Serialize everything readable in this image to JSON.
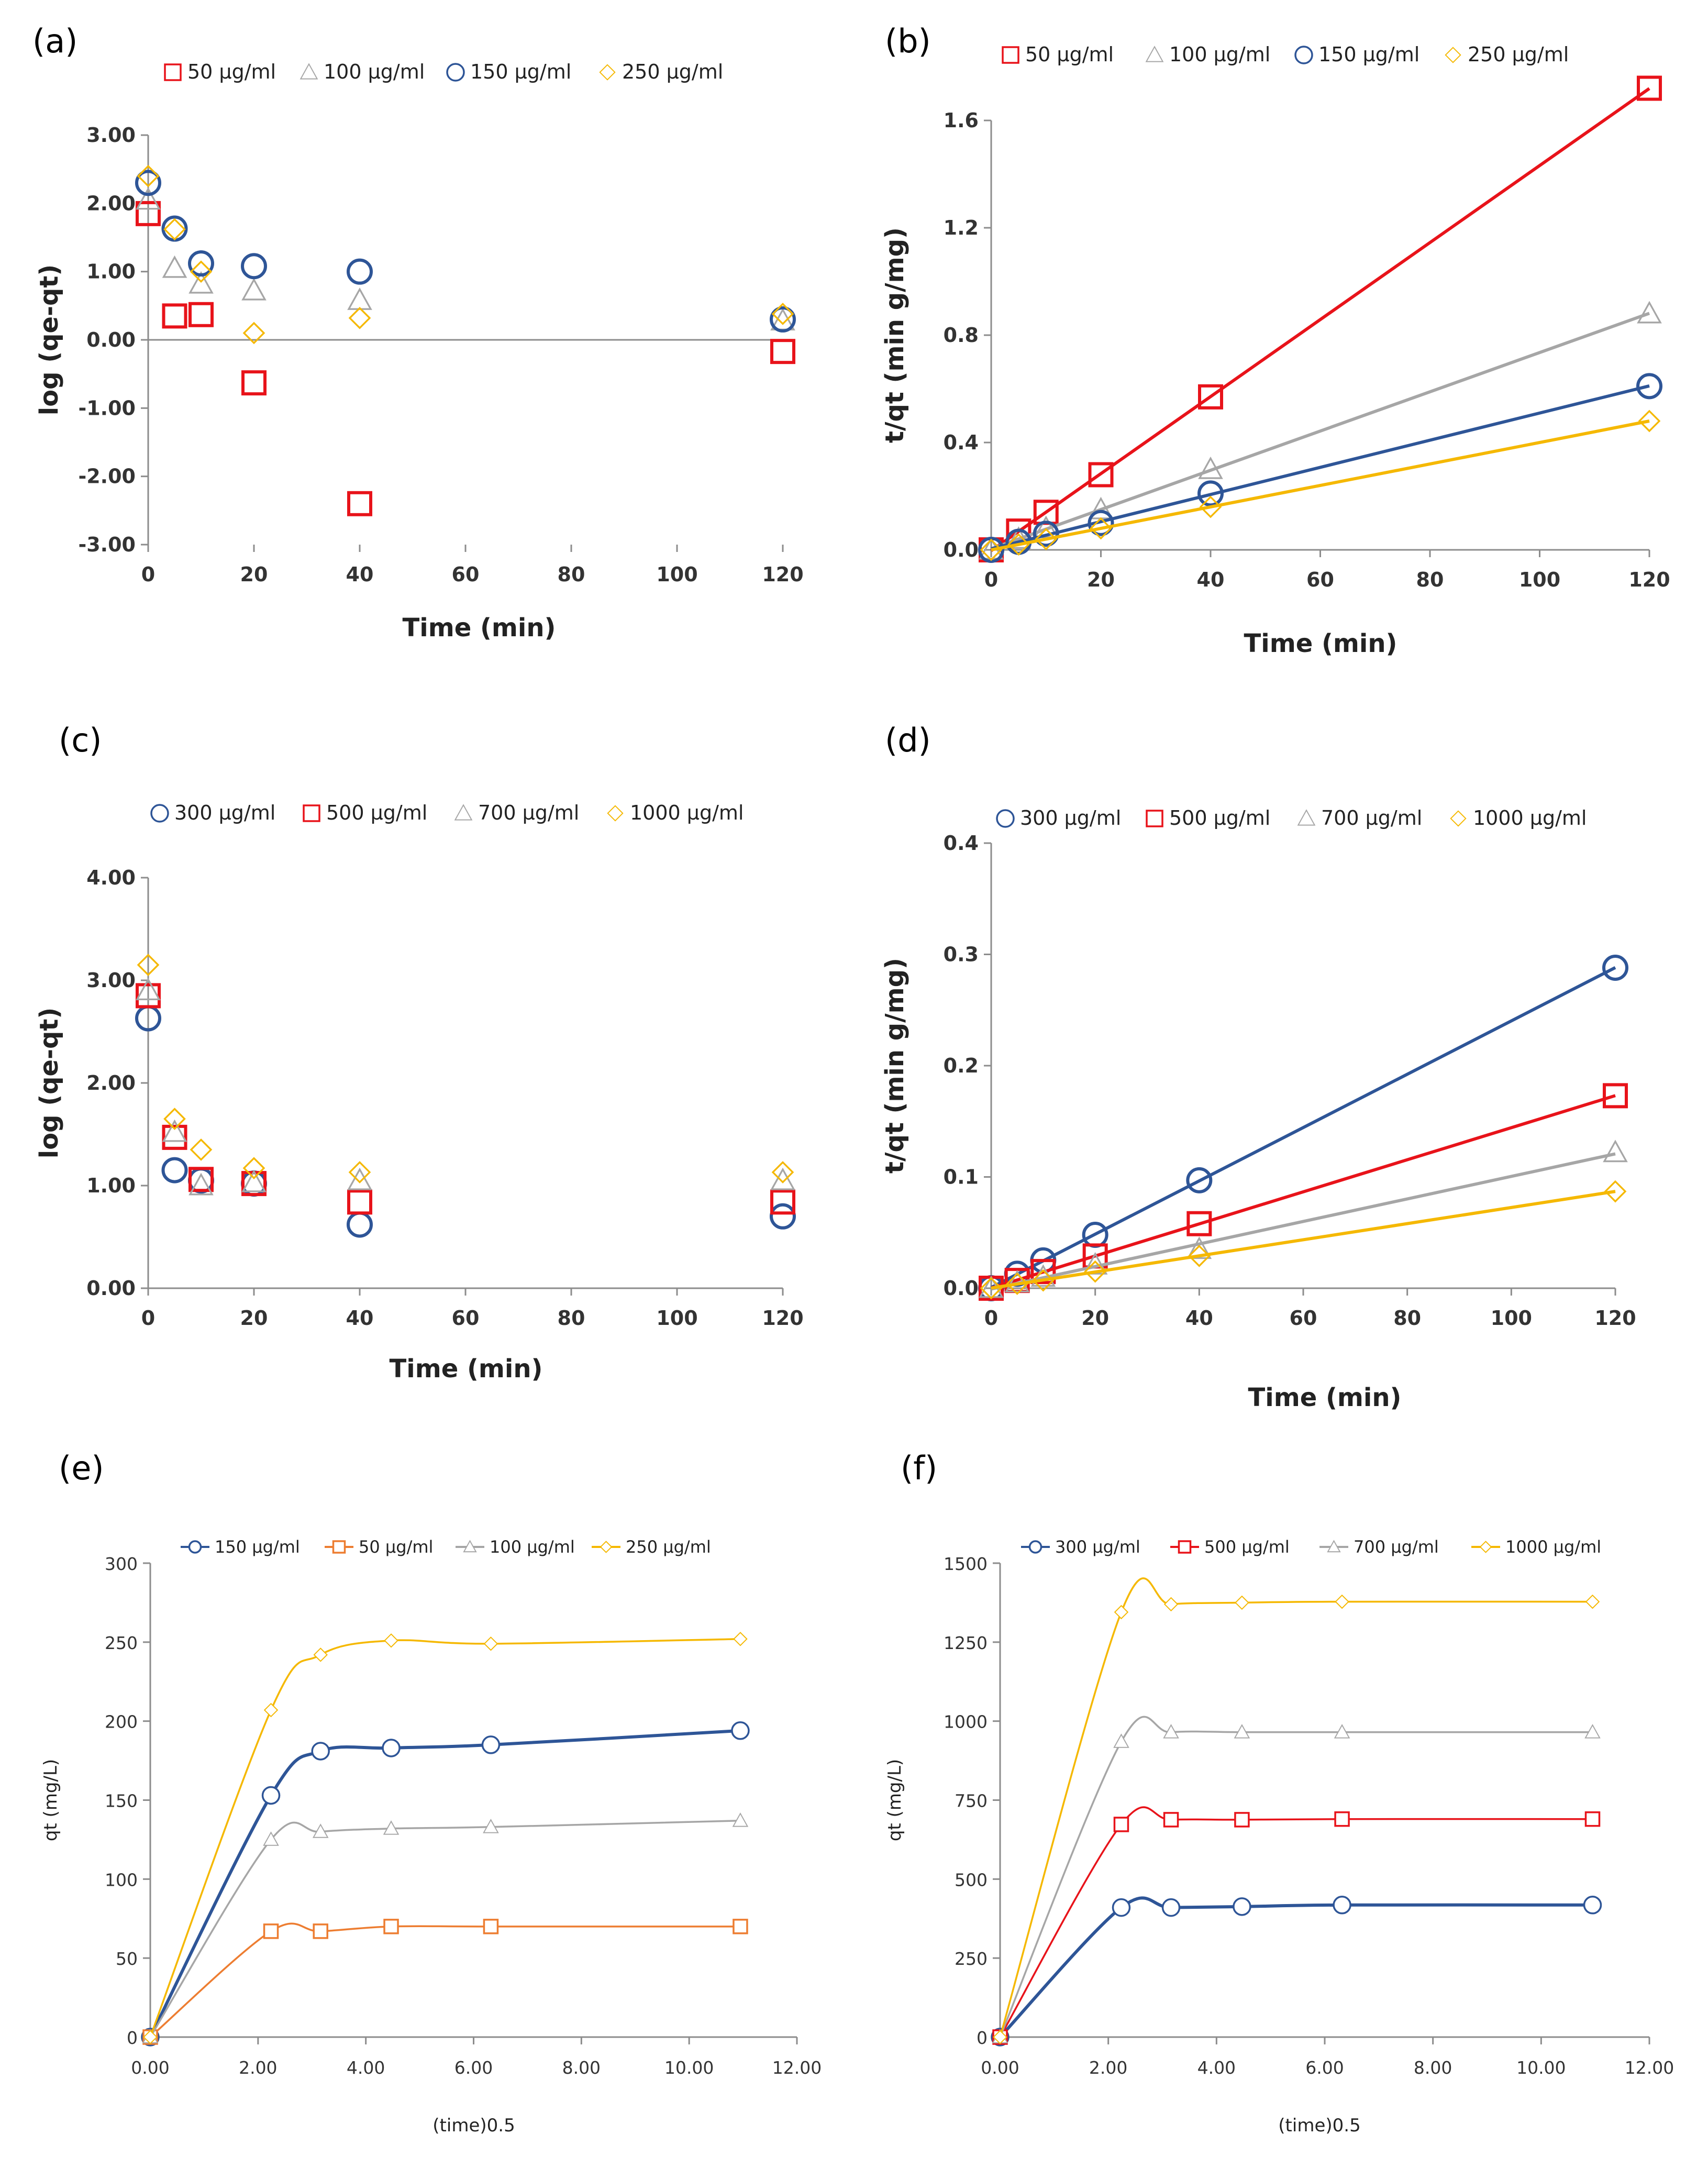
{
  "colors": {
    "red": "#e8131a",
    "gray": "#a6a6a6",
    "blue": "#2e5597",
    "gold": "#f5b800",
    "orange": "#ed7d31"
  },
  "chart_data": [
    {
      "panel": "(a)",
      "type": "scatter",
      "xlabel": "Time (min)",
      "ylabel": "log (qe-qt)",
      "xlim": [
        0,
        120
      ],
      "ylim": [
        -3,
        3
      ],
      "xticks": [
        "0",
        "20",
        "40",
        "60",
        "80",
        "100",
        "120"
      ],
      "yticks": [
        "-3.00",
        "-2.00",
        "-1.00",
        "0.00",
        "1.00",
        "2.00",
        "3.00"
      ],
      "legend": "top",
      "series": [
        {
          "name": "50  µg/ml",
          "color": "red",
          "marker": "square",
          "x": [
            0,
            5,
            10,
            20,
            40,
            120
          ],
          "y": [
            1.85,
            0.35,
            0.37,
            -0.63,
            -2.4,
            -0.17
          ]
        },
        {
          "name": "100  µg/ml",
          "color": "gray",
          "marker": "triangle",
          "x": [
            0,
            5,
            10,
            20,
            40,
            120
          ],
          "y": [
            2.05,
            1.05,
            0.82,
            0.72,
            0.58,
            0.28
          ]
        },
        {
          "name": "150  µg/ml",
          "color": "blue",
          "marker": "circle",
          "x": [
            0,
            5,
            10,
            20,
            40,
            120
          ],
          "y": [
            2.3,
            1.63,
            1.12,
            1.08,
            1.0,
            0.3
          ]
        },
        {
          "name": "250  µg/ml",
          "color": "gold",
          "marker": "diamond",
          "x": [
            0,
            5,
            10,
            20,
            40,
            120
          ],
          "y": [
            2.4,
            1.62,
            1.0,
            0.1,
            0.32,
            0.38
          ]
        }
      ]
    },
    {
      "panel": "(b)",
      "type": "scatter",
      "trendline": true,
      "xlabel": "Time (min)",
      "ylabel": "t/qt (min g/mg)",
      "xlim": [
        0,
        120
      ],
      "ylim": [
        0,
        1.6
      ],
      "xticks": [
        "0",
        "20",
        "40",
        "60",
        "80",
        "100",
        "120"
      ],
      "yticks": [
        "0.0",
        "0.4",
        "0.8",
        "1.2",
        "1.6"
      ],
      "legend": "top",
      "series": [
        {
          "name": "50  µg/ml",
          "color": "red",
          "marker": "square",
          "x": [
            0,
            5,
            10,
            20,
            40,
            120
          ],
          "y": [
            0,
            0.07,
            0.14,
            0.28,
            0.57,
            1.72
          ]
        },
        {
          "name": "100  µg/ml",
          "color": "gray",
          "marker": "triangle",
          "x": [
            0,
            5,
            10,
            20,
            40,
            120
          ],
          "y": [
            0,
            0.04,
            0.08,
            0.15,
            0.3,
            0.88
          ]
        },
        {
          "name": "150  µg/ml",
          "color": "blue",
          "marker": "circle",
          "x": [
            0,
            5,
            10,
            20,
            40,
            120
          ],
          "y": [
            0,
            0.03,
            0.06,
            0.1,
            0.21,
            0.61
          ]
        },
        {
          "name": "250  µg/ml",
          "color": "gold",
          "marker": "diamond",
          "x": [
            0,
            5,
            10,
            20,
            40,
            120
          ],
          "y": [
            0,
            0.02,
            0.04,
            0.08,
            0.16,
            0.48
          ]
        }
      ]
    },
    {
      "panel": "(c)",
      "type": "scatter",
      "xlabel": "Time (min)",
      "ylabel": "log (qe-qt)",
      "xlim": [
        0,
        120
      ],
      "ylim": [
        0,
        4
      ],
      "xticks": [
        "0",
        "20",
        "40",
        "60",
        "80",
        "100",
        "120"
      ],
      "yticks": [
        "0.00",
        "1.00",
        "2.00",
        "3.00",
        "4.00"
      ],
      "legend": "top",
      "series": [
        {
          "name": "300  µg/ml",
          "color": "blue",
          "marker": "circle",
          "x": [
            0,
            5,
            10,
            20,
            40,
            120
          ],
          "y": [
            2.63,
            1.15,
            1.05,
            1.02,
            0.62,
            0.7
          ]
        },
        {
          "name": "500  µg/ml",
          "color": "red",
          "marker": "square",
          "x": [
            0,
            5,
            10,
            20,
            40,
            120
          ],
          "y": [
            2.85,
            1.47,
            1.06,
            1.02,
            0.84,
            0.84
          ]
        },
        {
          "name": "700  µg/ml",
          "color": "gray",
          "marker": "triangle",
          "x": [
            0,
            5,
            10,
            20,
            40,
            120
          ],
          "y": [
            2.9,
            1.52,
            1.0,
            1.03,
            1.05,
            1.05
          ]
        },
        {
          "name": "1000  µg/ml",
          "color": "gold",
          "marker": "diamond",
          "x": [
            0,
            5,
            10,
            20,
            40,
            120
          ],
          "y": [
            3.15,
            1.65,
            1.35,
            1.17,
            1.13,
            1.13
          ]
        }
      ]
    },
    {
      "panel": "(d)",
      "type": "scatter",
      "trendline": true,
      "xlabel": "Time (min)",
      "ylabel": "t/qt (min g/mg)",
      "xlim": [
        0,
        120
      ],
      "ylim": [
        0,
        0.4
      ],
      "xticks": [
        "0",
        "20",
        "40",
        "60",
        "80",
        "100",
        "120"
      ],
      "yticks": [
        "0.0",
        "0.1",
        "0.2",
        "0.3",
        "0.4"
      ],
      "legend": "top",
      "series": [
        {
          "name": "300  µg/ml",
          "color": "blue",
          "marker": "circle",
          "x": [
            0,
            5,
            10,
            20,
            40,
            120
          ],
          "y": [
            0,
            0.013,
            0.025,
            0.048,
            0.097,
            0.288
          ]
        },
        {
          "name": "500  µg/ml",
          "color": "red",
          "marker": "square",
          "x": [
            0,
            5,
            10,
            20,
            40,
            120
          ],
          "y": [
            0,
            0.007,
            0.015,
            0.029,
            0.058,
            0.173
          ]
        },
        {
          "name": "700  µg/ml",
          "color": "gray",
          "marker": "triangle",
          "x": [
            0,
            5,
            10,
            20,
            40,
            120
          ],
          "y": [
            0,
            0.005,
            0.01,
            0.021,
            0.035,
            0.122
          ]
        },
        {
          "name": "1000  µg/ml",
          "color": "gold",
          "marker": "diamond",
          "x": [
            0,
            5,
            10,
            20,
            40,
            120
          ],
          "y": [
            0,
            0.004,
            0.007,
            0.015,
            0.029,
            0.087
          ]
        }
      ]
    },
    {
      "panel": "(e)",
      "type": "line",
      "xlabel": "(time)0.5",
      "ylabel": "qt (mg/L)",
      "xlim": [
        0,
        12
      ],
      "ylim": [
        0,
        300
      ],
      "xticks": [
        "0.00",
        "2.00",
        "4.00",
        "6.00",
        "8.00",
        "10.00",
        "12.00"
      ],
      "yticks": [
        "0",
        "50",
        "100",
        "150",
        "200",
        "250",
        "300"
      ],
      "legend": "top",
      "series": [
        {
          "name": "150 µg/ml",
          "color": "blue",
          "marker": "circle",
          "x": [
            0,
            2.24,
            3.16,
            4.47,
            6.32,
            10.95
          ],
          "y": [
            0,
            153,
            181,
            183,
            185,
            194
          ]
        },
        {
          "name": "50 µg/ml",
          "color": "orange",
          "marker": "square",
          "x": [
            0,
            2.24,
            3.16,
            4.47,
            6.32,
            10.95
          ],
          "y": [
            0,
            67,
            67,
            70,
            70,
            70
          ]
        },
        {
          "name": "100 µg/ml",
          "color": "gray",
          "marker": "triangle",
          "x": [
            0,
            2.24,
            3.16,
            4.47,
            6.32,
            10.95
          ],
          "y": [
            0,
            125,
            130,
            132,
            133,
            137
          ]
        },
        {
          "name": "250 µg/ml",
          "color": "gold",
          "marker": "diamond",
          "x": [
            0,
            2.24,
            3.16,
            4.47,
            6.32,
            10.95
          ],
          "y": [
            0,
            207,
            242,
            251,
            249,
            252
          ]
        }
      ]
    },
    {
      "panel": "(f)",
      "type": "line",
      "xlabel": "(time)0.5",
      "ylabel": "qt (mg/L)",
      "xlim": [
        0,
        12
      ],
      "ylim": [
        0,
        1500
      ],
      "xticks": [
        "0.00",
        "2.00",
        "4.00",
        "6.00",
        "8.00",
        "10.00",
        "12.00"
      ],
      "yticks": [
        "0",
        "250",
        "500",
        "750",
        "1000",
        "1250",
        "1500"
      ],
      "legend": "top",
      "series": [
        {
          "name": "300 µg/ml",
          "color": "blue",
          "marker": "circle",
          "x": [
            0,
            2.24,
            3.16,
            4.47,
            6.32,
            10.95
          ],
          "y": [
            0,
            410,
            410,
            413,
            418,
            418
          ]
        },
        {
          "name": "500 µg/ml",
          "color": "red",
          "marker": "square",
          "x": [
            0,
            2.24,
            3.16,
            4.47,
            6.32,
            10.95
          ],
          "y": [
            0,
            673,
            688,
            688,
            690,
            690
          ]
        },
        {
          "name": "700 µg/ml",
          "color": "gray",
          "marker": "triangle",
          "x": [
            0,
            2.24,
            3.16,
            4.47,
            6.32,
            10.95
          ],
          "y": [
            0,
            935,
            965,
            965,
            965,
            965
          ]
        },
        {
          "name": "1000 µg/ml",
          "color": "gold",
          "marker": "diamond",
          "x": [
            0,
            2.24,
            3.16,
            4.47,
            6.32,
            10.95
          ],
          "y": [
            0,
            1345,
            1370,
            1375,
            1378,
            1378
          ]
        }
      ]
    }
  ]
}
